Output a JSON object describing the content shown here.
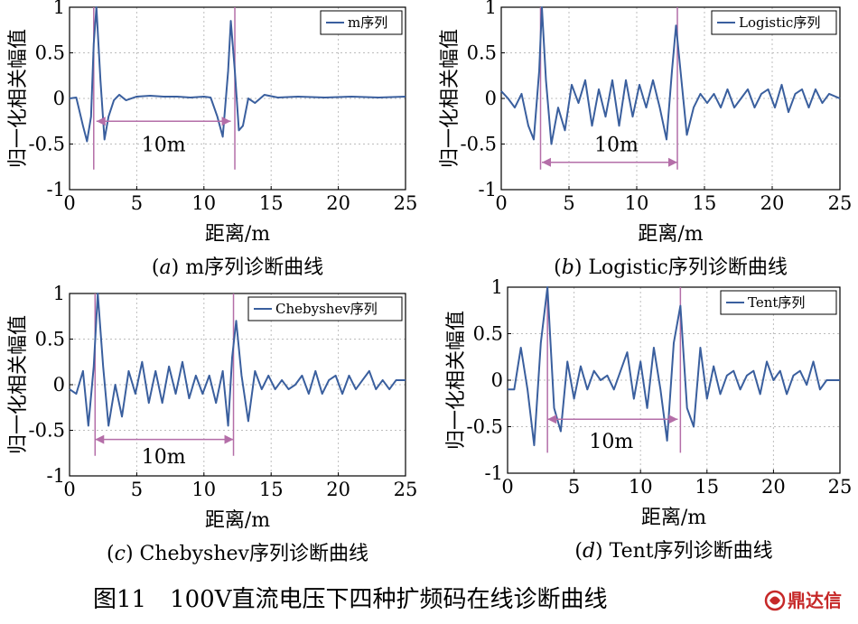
{
  "figure_title": "图11　100V直流电压下四种扩频码在线诊断曲线",
  "logo": {
    "text": "鼎达信",
    "color": "#c62828"
  },
  "colors": {
    "curve": "#3a5f9e",
    "marker": "#b46ea8",
    "grid": "#bdbdbd"
  },
  "chart_data": [
    {
      "type": "line",
      "caption_letter": "a",
      "caption_text": "m序列诊断曲线",
      "xlabel": "距离/m",
      "ylabel": "归一化相关幅值",
      "xlim": [
        0,
        25
      ],
      "ylim": [
        -1,
        1
      ],
      "xticks": [
        0,
        5,
        10,
        15,
        20,
        25
      ],
      "yticks": [
        -1,
        -0.5,
        0,
        0.5,
        1
      ],
      "grid": true,
      "legend": "top-right",
      "series": [
        {
          "name": "m序列",
          "x": [
            0,
            0.5,
            1.0,
            1.3,
            1.6,
            1.8,
            2.0,
            2.3,
            2.6,
            2.9,
            3.3,
            3.7,
            4.2,
            5,
            6,
            7,
            8,
            9,
            10,
            10.5,
            11.0,
            11.4,
            11.8,
            12.0,
            12.3,
            12.6,
            12.9,
            13.3,
            13.8,
            14.5,
            15.5,
            17,
            19,
            21,
            23,
            25
          ],
          "y": [
            0,
            0.01,
            -0.3,
            -0.47,
            -0.2,
            0.6,
            1.0,
            0.2,
            -0.45,
            -0.2,
            -0.02,
            0.04,
            -0.02,
            0.02,
            0.03,
            0.02,
            0.02,
            0.01,
            0.02,
            0.01,
            -0.2,
            -0.42,
            0.3,
            0.85,
            0.3,
            -0.35,
            -0.3,
            0.0,
            -0.05,
            0.04,
            0.01,
            0.02,
            0.01,
            0.02,
            0.01,
            0.02
          ]
        }
      ],
      "peaks": [
        1.8,
        12.3
      ],
      "arrow": {
        "from": 2.0,
        "to": 12.0,
        "y": -0.25
      },
      "annotation": {
        "text": "10m",
        "x": 7.0,
        "y": -0.5
      }
    },
    {
      "type": "line",
      "caption_letter": "b",
      "caption_text": "Logistic序列诊断曲线",
      "xlabel": "距离/m",
      "ylabel": "归一化相关幅值",
      "xlim": [
        0,
        25
      ],
      "ylim": [
        -1,
        1
      ],
      "xticks": [
        0,
        5,
        10,
        15,
        20,
        25
      ],
      "yticks": [
        -1,
        -0.5,
        0,
        0.5,
        1
      ],
      "grid": true,
      "legend": "top-right",
      "series": [
        {
          "name": "Logistic序列",
          "x": [
            0,
            0.5,
            1.0,
            1.5,
            2.0,
            2.4,
            2.8,
            3.0,
            3.3,
            3.7,
            4.2,
            4.7,
            5.2,
            5.7,
            6.2,
            6.7,
            7.2,
            7.7,
            8.2,
            8.7,
            9.2,
            9.7,
            10.2,
            10.7,
            11.2,
            11.7,
            12.2,
            12.6,
            12.9,
            13.3,
            13.7,
            14.2,
            14.7,
            15.2,
            15.7,
            16.2,
            16.7,
            17.2,
            17.7,
            18.2,
            18.7,
            19.2,
            19.7,
            20.2,
            20.7,
            21.2,
            21.7,
            22.2,
            22.7,
            23.2,
            23.7,
            24.2,
            25
          ],
          "y": [
            0.08,
            0.0,
            -0.1,
            0.05,
            -0.3,
            -0.45,
            0.3,
            1.0,
            0.2,
            -0.5,
            -0.1,
            -0.35,
            0.15,
            -0.05,
            0.2,
            -0.3,
            0.1,
            -0.2,
            0.2,
            -0.3,
            0.2,
            -0.2,
            0.15,
            -0.1,
            0.2,
            -0.1,
            -0.45,
            0.3,
            0.8,
            0.2,
            -0.4,
            -0.1,
            0.05,
            -0.05,
            0.05,
            -0.1,
            0.1,
            -0.1,
            0.0,
            0.1,
            -0.1,
            0.05,
            0.1,
            -0.1,
            0.15,
            -0.15,
            0.05,
            0.1,
            -0.1,
            0.1,
            -0.05,
            0.05,
            0.0
          ]
        }
      ],
      "peaks": [
        2.9,
        13.0
      ],
      "arrow": {
        "from": 3.0,
        "to": 13.0,
        "y": -0.7
      },
      "annotation": {
        "text": "10m",
        "x": 8.5,
        "y": -0.5
      }
    },
    {
      "type": "line",
      "caption_letter": "c",
      "caption_text": "Chebyshev序列诊断曲线",
      "xlabel": "距离/m",
      "ylabel": "归一化相关幅值",
      "xlim": [
        0,
        25
      ],
      "ylim": [
        -1,
        1
      ],
      "xticks": [
        0,
        5,
        10,
        15,
        20,
        25
      ],
      "yticks": [
        -1,
        -0.5,
        0,
        0.5,
        1
      ],
      "grid": true,
      "legend": "top-right",
      "series": [
        {
          "name": "Chebyshev序列",
          "x": [
            0,
            0.5,
            1.0,
            1.4,
            1.8,
            2.1,
            2.5,
            2.9,
            3.4,
            3.9,
            4.4,
            4.9,
            5.4,
            5.9,
            6.4,
            6.9,
            7.4,
            7.9,
            8.4,
            8.9,
            9.4,
            9.9,
            10.4,
            10.9,
            11.4,
            11.8,
            12.1,
            12.4,
            12.8,
            13.3,
            13.8,
            14.3,
            14.8,
            15.3,
            15.8,
            16.3,
            16.8,
            17.3,
            17.8,
            18.3,
            18.8,
            19.3,
            19.8,
            20.3,
            20.8,
            21.3,
            21.8,
            22.3,
            22.8,
            23.3,
            23.8,
            24.3,
            25
          ],
          "y": [
            -0.05,
            -0.1,
            0.15,
            -0.45,
            0.2,
            1.0,
            0.2,
            -0.45,
            0.0,
            -0.35,
            0.15,
            -0.1,
            0.25,
            -0.2,
            0.15,
            -0.2,
            0.2,
            -0.1,
            0.25,
            -0.15,
            0.1,
            -0.1,
            0.1,
            -0.2,
            0.15,
            -0.45,
            0.3,
            0.7,
            0.1,
            -0.4,
            0.15,
            -0.05,
            0.1,
            -0.05,
            0.05,
            -0.05,
            0.0,
            0.1,
            -0.1,
            0.15,
            -0.1,
            0.05,
            0.1,
            -0.1,
            0.1,
            -0.05,
            0.05,
            0.15,
            -0.05,
            0.05,
            -0.05,
            0.05,
            0.05
          ]
        }
      ],
      "peaks": [
        1.9,
        12.2
      ],
      "arrow": {
        "from": 1.9,
        "to": 12.2,
        "y": -0.6
      },
      "annotation": {
        "text": "10m",
        "x": 7.0,
        "y": -0.78
      }
    },
    {
      "type": "line",
      "caption_letter": "d",
      "caption_text": "Tent序列诊断曲线",
      "xlabel": "距离/m",
      "ylabel": "归一化相关幅值",
      "xlim": [
        0,
        25
      ],
      "ylim": [
        -1,
        1
      ],
      "xticks": [
        0,
        5,
        10,
        15,
        20,
        25
      ],
      "yticks": [
        -1,
        -0.5,
        0,
        0.5,
        1
      ],
      "grid": true,
      "legend": "top-right",
      "series": [
        {
          "name": "Tent序列",
          "x": [
            0,
            0.5,
            1.0,
            1.5,
            2.0,
            2.5,
            3.0,
            3.5,
            4.0,
            4.5,
            5.0,
            5.5,
            6.0,
            6.5,
            7.0,
            7.5,
            8.0,
            8.5,
            9.0,
            9.5,
            10.0,
            10.5,
            11.0,
            11.5,
            12.0,
            12.5,
            13.0,
            13.5,
            14.0,
            14.5,
            15.0,
            15.5,
            16.0,
            16.5,
            17.0,
            17.5,
            18.0,
            18.5,
            19.0,
            19.5,
            20.0,
            20.5,
            21.0,
            21.5,
            22.0,
            22.5,
            23.0,
            23.5,
            24.0,
            25
          ],
          "y": [
            -0.1,
            -0.1,
            0.35,
            -0.1,
            -0.7,
            0.4,
            1.0,
            -0.3,
            -0.55,
            0.2,
            -0.2,
            0.15,
            -0.1,
            0.1,
            0.0,
            0.05,
            -0.1,
            0.1,
            0.3,
            -0.2,
            0.2,
            -0.3,
            0.35,
            -0.1,
            -0.65,
            0.4,
            0.8,
            -0.3,
            -0.5,
            0.35,
            -0.2,
            0.15,
            -0.15,
            0.05,
            0.1,
            -0.1,
            0.05,
            0.1,
            -0.15,
            0.2,
            0.0,
            0.1,
            -0.15,
            0.05,
            0.1,
            -0.05,
            0.2,
            -0.1,
            0.0,
            0.0
          ]
        }
      ],
      "peaks": [
        3.0,
        13.0
      ],
      "arrow": {
        "from": 3.0,
        "to": 12.8,
        "y": -0.42
      },
      "annotation": {
        "text": "10m",
        "x": 7.8,
        "y": -0.65
      }
    }
  ]
}
